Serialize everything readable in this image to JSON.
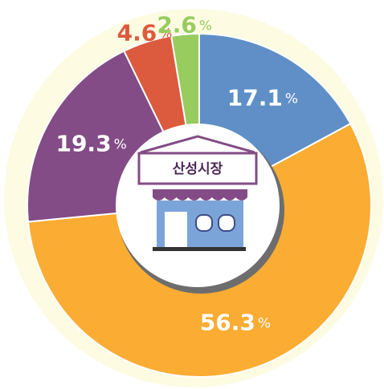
{
  "chart_data": {
    "type": "donut",
    "center_label": "산성시장",
    "unit": "%",
    "values": [
      17.1,
      56.3,
      19.3,
      4.6,
      2.6
    ],
    "colors": [
      "#5f8fc6",
      "#fbac32",
      "#834c86",
      "#dc5a3d",
      "#98cc5f"
    ]
  }
}
